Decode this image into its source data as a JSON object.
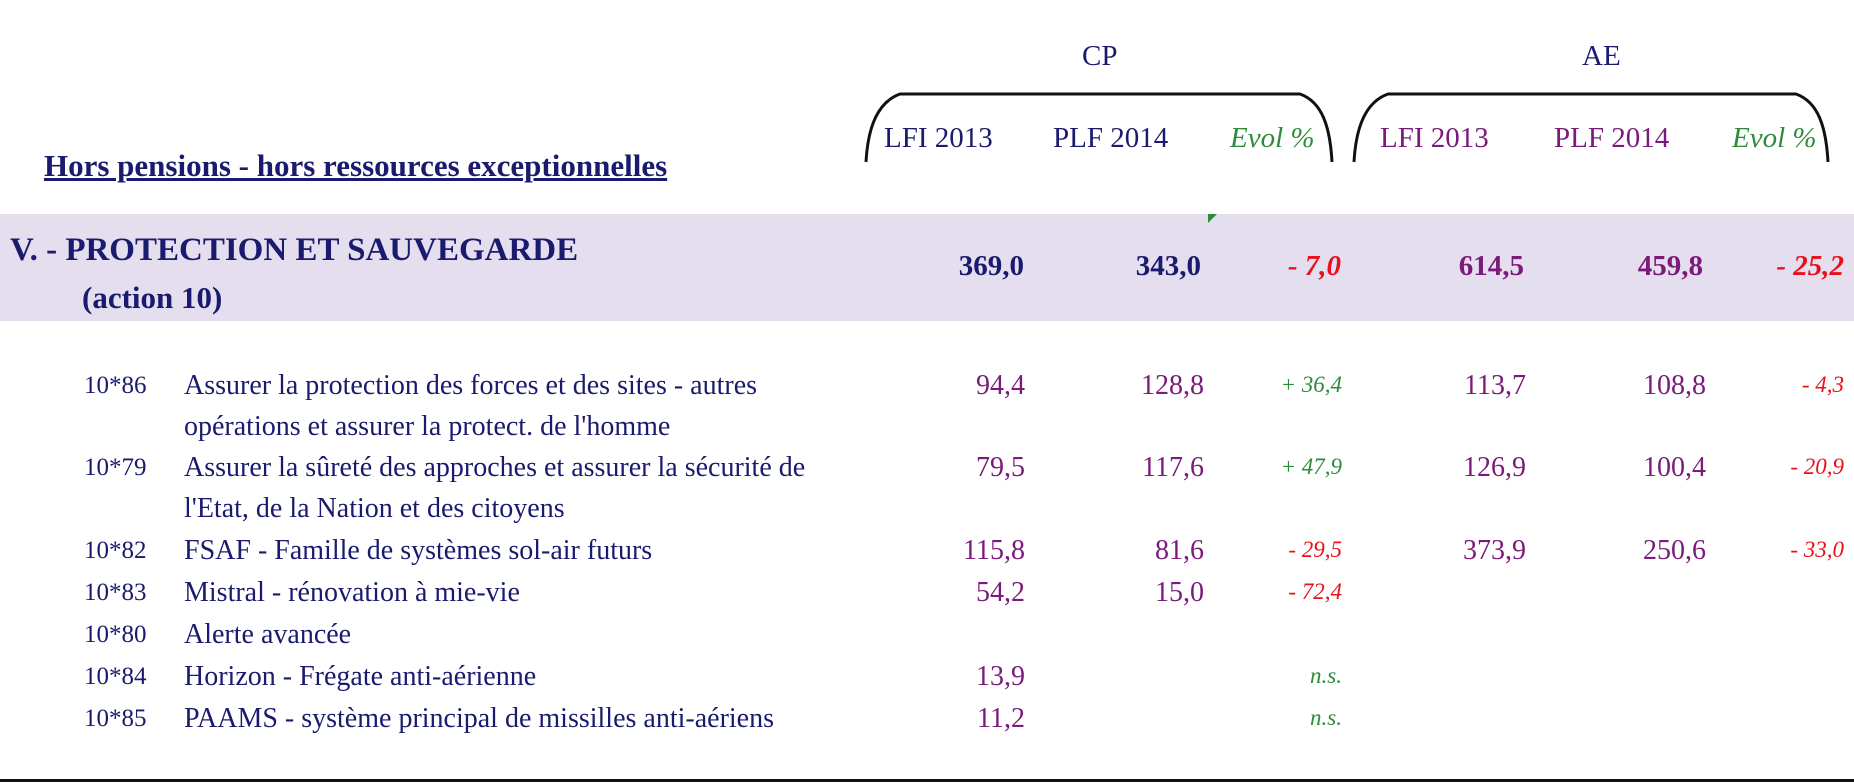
{
  "header": {
    "subtitle": "Hors pensions - hors ressources exceptionnelles",
    "group_cp": "CP",
    "group_ae": "AE",
    "cp_cols": [
      "LFI 2013",
      "PLF 2014",
      "Evol %"
    ],
    "ae_cols": [
      "LFI 2013",
      "PLF 2014",
      "Evol %"
    ]
  },
  "section": {
    "title": "V. - PROTECTION ET SAUVEGARDE",
    "subtitle": "(action 10)",
    "cp_lfi": "369,0",
    "cp_plf": "343,0",
    "cp_evol": "- 7,0",
    "ae_lfi": "614,5",
    "ae_plf": "459,8",
    "ae_evol": "- 25,2"
  },
  "rows": [
    {
      "code": "10*86",
      "label": "Assurer la protection des forces et des sites - autres opérations et assurer la protect. de l'homme",
      "cp_lfi": "94,4",
      "cp_plf": "128,8",
      "cp_evol": "+ 36,4",
      "ae_lfi": "113,7",
      "ae_plf": "108,8",
      "ae_evol": "- 4,3"
    },
    {
      "code": "10*79",
      "label": "Assurer la sûreté des approches et assurer la sécurité de l'Etat, de la Nation et des citoyens",
      "cp_lfi": "79,5",
      "cp_plf": "117,6",
      "cp_evol": "+ 47,9",
      "ae_lfi": "126,9",
      "ae_plf": "100,4",
      "ae_evol": "- 20,9"
    },
    {
      "code": "10*82",
      "label": "FSAF - Famille de systèmes sol-air futurs",
      "cp_lfi": "115,8",
      "cp_plf": "81,6",
      "cp_evol": "- 29,5",
      "ae_lfi": "373,9",
      "ae_plf": "250,6",
      "ae_evol": "- 33,0"
    },
    {
      "code": "10*83",
      "label": "Mistral  - rénovation à mie-vie",
      "cp_lfi": "54,2",
      "cp_plf": "15,0",
      "cp_evol": "- 72,4",
      "ae_lfi": "",
      "ae_plf": "",
      "ae_evol": ""
    },
    {
      "code": "10*80",
      "label": "Alerte avancée",
      "cp_lfi": "",
      "cp_plf": "",
      "cp_evol": "",
      "ae_lfi": "",
      "ae_plf": "",
      "ae_evol": ""
    },
    {
      "code": "10*84",
      "label": "Horizon - Frégate anti-aérienne",
      "cp_lfi": "13,9",
      "cp_plf": "",
      "cp_evol": "n.s.",
      "ae_lfi": "",
      "ae_plf": "",
      "ae_evol": ""
    },
    {
      "code": "10*85",
      "label": "PAAMS  - système principal de missilles anti-aériens",
      "cp_lfi": "11,2",
      "cp_plf": "",
      "cp_evol": "n.s.",
      "ae_lfi": "",
      "ae_plf": "",
      "ae_evol": ""
    }
  ],
  "colors": {
    "navy": "#1a1a6e",
    "purple": "#7a1a7a",
    "green": "#2e8b3a",
    "red": "#e8101a",
    "band": "#e4deef"
  }
}
